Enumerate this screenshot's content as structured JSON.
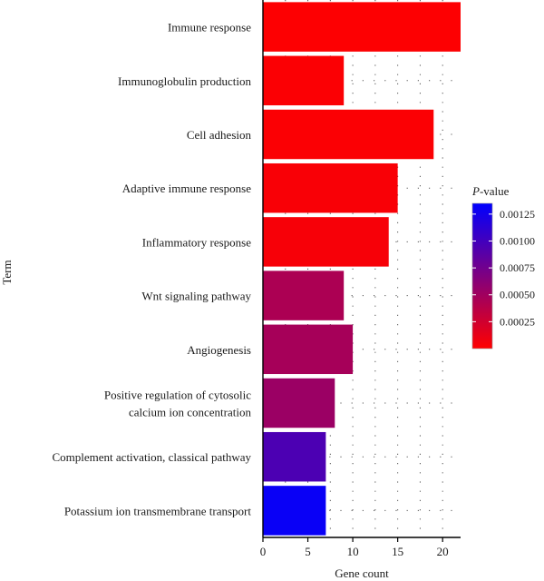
{
  "chart_data": {
    "type": "bar",
    "orientation": "horizontal",
    "xlabel": "Gene count",
    "ylabel": "Term",
    "xlim": [
      0,
      22
    ],
    "xticks": [
      0,
      5,
      10,
      15,
      20
    ],
    "grid": "dotted",
    "categories": [
      [
        "Immune response"
      ],
      [
        "Immunoglobulin production"
      ],
      [
        "Cell adhesion"
      ],
      [
        "Adaptive immune response"
      ],
      [
        "Inflammatory response"
      ],
      [
        "Wnt signaling pathway"
      ],
      [
        "Angiogenesis"
      ],
      [
        "Positive regulation of cytosolic",
        "calcium ion concentration"
      ],
      [
        "Complement activation, classical pathway"
      ],
      [
        "Potassium ion transmembrane transport"
      ]
    ],
    "values": [
      22,
      9,
      19,
      15,
      14,
      9,
      10,
      8,
      7,
      7
    ],
    "pvalues": [
      1e-05,
      2e-05,
      2e-05,
      3e-05,
      4e-05,
      0.00044,
      0.00047,
      0.00053,
      0.00095,
      0.0013
    ],
    "legend": {
      "title_italic": "P",
      "title_rest": "-value",
      "position": "right",
      "ticks": [
        0.00125,
        0.001,
        0.00075,
        0.0005,
        0.00025
      ],
      "tick_labels": [
        "0.00125",
        "0.00100",
        "0.00075",
        "0.00050",
        "0.00025"
      ],
      "range": [
        0,
        0.00135
      ],
      "color_low": "#ff0000",
      "color_high": "#0000ff"
    }
  }
}
